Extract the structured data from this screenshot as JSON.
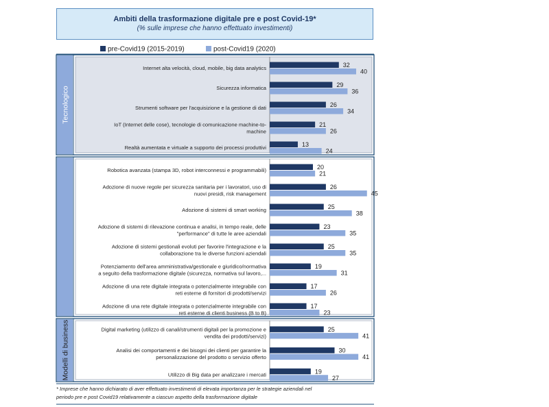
{
  "title": "Ambiti della trasformazione digitale pre e post Covid-19*",
  "subtitle": "(% sulle imprese che hanno effettuato investimenti)",
  "colors": {
    "pre": "#1f3864",
    "post": "#8eaadb",
    "panel_bg": "#dfe3eb",
    "border": "#1f4e79"
  },
  "chart_data": {
    "type": "bar",
    "orientation": "horizontal",
    "xlim": [
      0,
      50
    ],
    "legend": [
      "pre-Covid19 (2015-2019)",
      "post-Covid19 (2020)"
    ],
    "groups": [
      {
        "name": "Tecnologico",
        "shaded": true,
        "categories": [
          [
            "Internet alta velocità, cloud, mobile, big data analytics"
          ],
          [
            "Sicurezza informatica"
          ],
          [
            "Strumenti software  per l'acquisizione e la gestione di dati"
          ],
          [
            "IoT (Internet delle cose), tecnologie di comunicazione machine-to-",
            "machine"
          ],
          [
            "Realtà aumentata e virtuale a supporto dei processi produttivi"
          ]
        ],
        "pre": [
          32,
          29,
          26,
          21,
          13
        ],
        "post": [
          40,
          36,
          34,
          26,
          24
        ]
      },
      {
        "name": "",
        "shaded": false,
        "categories": [
          [
            "Robotica avanzata (stampa 3D, robot interconnessi e programmabili)"
          ],
          [
            "Adozione di nuove regole per sicurezza sanitaria per i lavoratori, uso di",
            "nuovi presidi, risk management"
          ],
          [
            "Adozione di sistemi di smart working"
          ],
          [
            "Adozione di sistemi di rilevazione continua e analisi, in tempo reale, delle",
            "\"performance\" di tutte le aree aziendali"
          ],
          [
            "Adozione di sistemi gestionali evoluti per favorire l'integrazione e la",
            "collaborazione tra le diverse funzioni aziendali"
          ],
          [
            "Potenziamento dell'area amministrativa/gestionale e giuridico/normativa",
            "a seguito della trasformazione digitale (sicurezza, normativa sul lavoro,..."
          ],
          [
            "Adozione di una rete digitale integrata o potenzialmente integrabile con",
            "reti esterne di fornitori di prodotti/servizi"
          ],
          [
            "Adozione di una rete digitale integrata o potenzialmente integrabile con",
            "reti esterne di clienti business (B to B)"
          ]
        ],
        "pre": [
          20,
          26,
          25,
          23,
          25,
          19,
          17,
          17
        ],
        "post": [
          21,
          45,
          38,
          35,
          35,
          31,
          26,
          23
        ]
      },
      {
        "name": "Modelli di business",
        "shaded": false,
        "categories": [
          [
            "Digital marketing (utilizzo di canali/strumenti digitali per la promozione e",
            "vendita dei prodotti/servizi)"
          ],
          [
            "Analisi dei comportamenti e dei bisogni dei clienti per garantire la",
            "personalizzazione del prodotto o servizio offerto"
          ],
          [
            "Utilizzo di Big data per analizzare i mercati"
          ]
        ],
        "pre": [
          25,
          30,
          19
        ],
        "post": [
          41,
          41,
          27
        ]
      }
    ]
  },
  "footnote_lines": [
    "* Imprese che hanno dichiarato di aver effettuato investimenti di elevata importanza per le strategie aziendali nel",
    "periodo pre e post Covid19 relativamente a ciascun aspetto della trasformazione digitale"
  ]
}
